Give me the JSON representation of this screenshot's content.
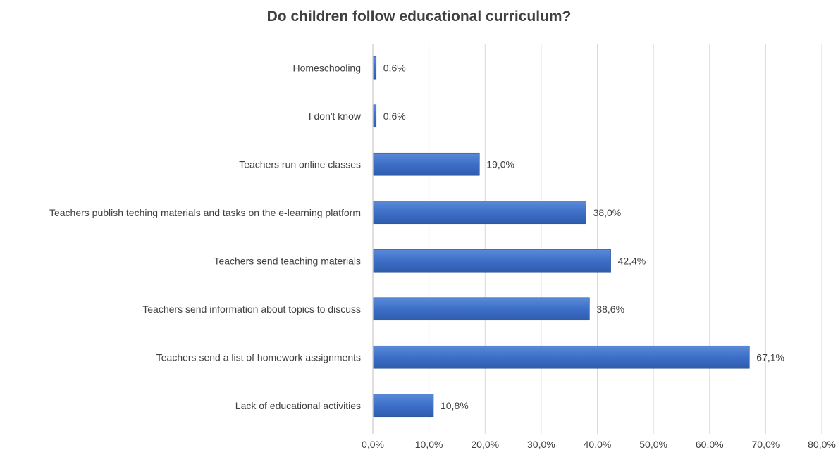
{
  "chart_data": {
    "type": "bar",
    "orientation": "horizontal",
    "title": "Do children follow educational curriculum?",
    "xlabel": "",
    "ylabel": "",
    "categories": [
      "Homeschooling",
      "I don't know",
      "Teachers run online classes",
      "Teachers publish teching materials and tasks on the e-learning platform",
      "Teachers send teaching materials",
      "Teachers send information about topics to discuss",
      "Teachers send a list of homework assignments",
      "Lack of educational activities"
    ],
    "values": [
      0.6,
      0.6,
      19.0,
      38.0,
      42.4,
      38.6,
      67.1,
      10.8
    ],
    "data_labels": [
      "0,6%",
      "0,6%",
      "19,0%",
      "38,0%",
      "42,4%",
      "38,6%",
      "67,1%",
      "10,8%"
    ],
    "xlim": [
      0,
      80
    ],
    "ticks": [
      0,
      10,
      20,
      30,
      40,
      50,
      60,
      70,
      80
    ],
    "tick_labels": [
      "0,0%",
      "10,0%",
      "20,0%",
      "30,0%",
      "40,0%",
      "50,0%",
      "60,0%",
      "70,0%",
      "80,0%"
    ],
    "grid": "vertical",
    "legend": "none",
    "bar_color": "#4472c4"
  }
}
